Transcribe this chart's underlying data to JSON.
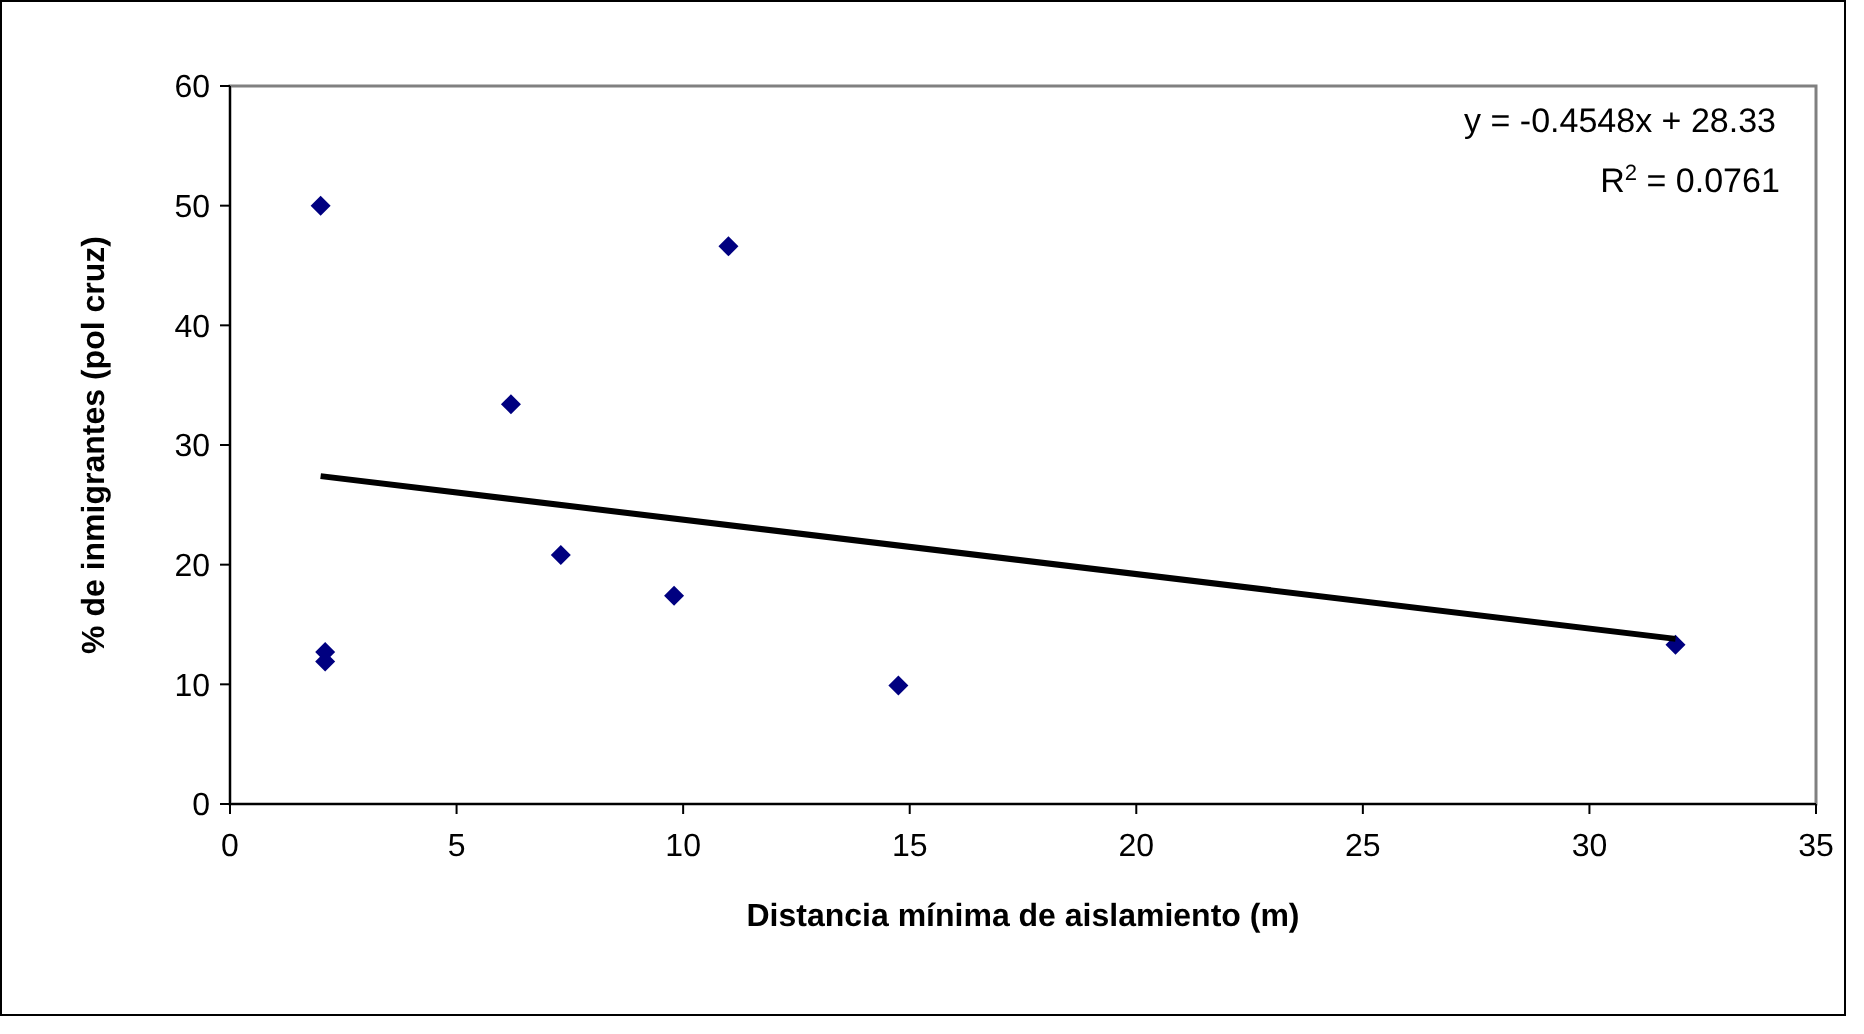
{
  "chart_data": {
    "type": "scatter",
    "xlabel": "Distancia mínima de aislamiento (m)",
    "ylabel": "% de inmigrantes (pol cruz)",
    "xlim": [
      0,
      35
    ],
    "xticks": [
      0,
      5,
      10,
      15,
      20,
      25,
      30,
      35
    ],
    "ylim": [
      0,
      60
    ],
    "yticks": [
      0,
      10,
      20,
      30,
      40,
      50,
      60
    ],
    "grid": false,
    "marker": "diamond",
    "annotations": [
      "y = -0.4548x + 28.33",
      "R$^{2}$ = 0.0761"
    ],
    "series": [
      {
        "color": "#000080",
        "x": [
          2.0,
          11.0,
          6.2,
          7.3,
          9.8,
          2.1,
          2.1,
          14.75,
          31.9
        ],
        "values": [
          50,
          46.6,
          33.4,
          20.8,
          17.4,
          12.7,
          11.9,
          9.9,
          13.3
        ]
      },
      {
        "type": "line",
        "color": "#000000",
        "x": [
          2.0,
          31.9
        ],
        "values": [
          27.4,
          13.8
        ],
        "marker": "none",
        "line_style": "solid"
      }
    ]
  }
}
